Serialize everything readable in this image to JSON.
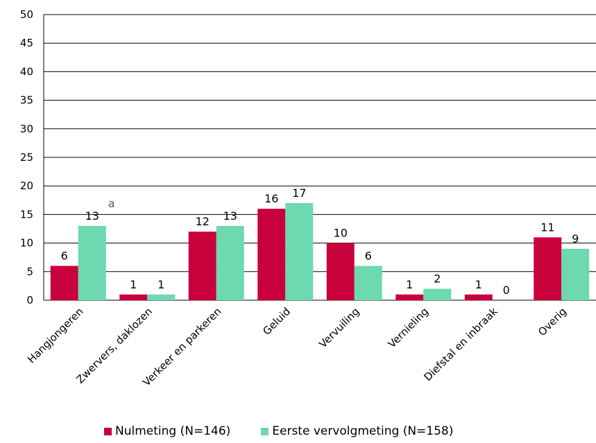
{
  "chart_data": {
    "type": "bar",
    "categories": [
      "Hangjongeren",
      "Zwervers, daklozen",
      "Verkeer en parkeren",
      "Geluid",
      "Vervuiling",
      "Vernieling",
      "Diefstal en inbraak",
      "Overig"
    ],
    "series": [
      {
        "name": "Nulmeting (N=146)",
        "color": "#c8003c",
        "values": [
          6,
          1,
          12,
          16,
          10,
          1,
          1,
          11
        ]
      },
      {
        "name": "Eerste vervolgmeting (N=158)",
        "color": "#6cd9b0",
        "values": [
          13,
          1,
          13,
          17,
          6,
          2,
          0,
          9
        ]
      }
    ],
    "annotations": [
      {
        "category": "Hangjongeren",
        "series": 1,
        "text": "a"
      }
    ],
    "yticks": [
      0,
      5,
      10,
      15,
      20,
      25,
      30,
      35,
      40,
      45,
      50
    ],
    "ylim": [
      0,
      50
    ],
    "grid": true,
    "legend_position": "bottom",
    "title": "",
    "xlabel": "",
    "ylabel": ""
  }
}
